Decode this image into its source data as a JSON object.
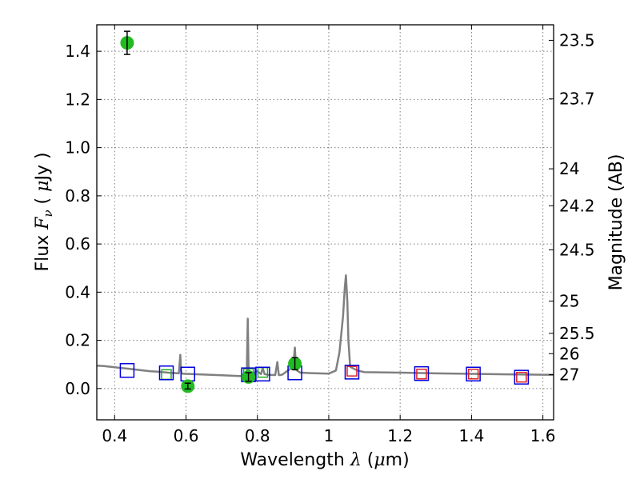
{
  "chart_data": {
    "type": "scatter",
    "title": "",
    "xlabel_prefix": "Wavelength  ",
    "xlabel_symbol": "λ",
    "xlabel_unit_open": " (",
    "xlabel_unit_mu": "μ",
    "xlabel_unit_close": "m)",
    "ylabel_prefix": "Flux  ",
    "ylabel_symbol": "F",
    "ylabel_subscript": "ν",
    "ylabel_unit_open": "  ( ",
    "ylabel_unit_mu": "μ",
    "ylabel_unit_close": "Jy )",
    "y2label": "Magnitude (AB)",
    "xlim": [
      0.35,
      1.63
    ],
    "ylim": [
      -0.13,
      1.51
    ],
    "grid": true,
    "x_ticks": [
      0.4,
      0.6,
      0.8,
      1.0,
      1.2,
      1.4,
      1.6
    ],
    "x_tick_labels": [
      "0.4",
      "0.6",
      "0.8",
      "1",
      "1.2",
      "1.4",
      "1.6"
    ],
    "y_ticks": [
      0.0,
      0.2,
      0.4,
      0.6,
      0.8,
      1.0,
      1.2,
      1.4
    ],
    "y_tick_labels": [
      "0.0",
      "0.2",
      "0.4",
      "0.6",
      "0.8",
      "1.0",
      "1.2",
      "1.4"
    ],
    "mag_ticks": [
      23.5,
      23.7,
      24,
      24.2,
      24.5,
      25,
      25.5,
      26,
      27
    ],
    "mag_tick_labels": [
      "23.5",
      "23.7",
      "24",
      "24.2",
      "24.5",
      "25",
      "25.5",
      "26",
      "27"
    ],
    "colors": {
      "model": "#808080",
      "observed": "#22bb22",
      "blue_box": "#0000dd",
      "green_box": "#22aa22",
      "red_box": "#dd2222",
      "grid": "#808080"
    },
    "series": [
      {
        "kind": "model-spectrum",
        "x": [
          0.35,
          0.37,
          0.4,
          0.42,
          0.44,
          0.46,
          0.48,
          0.5,
          0.52,
          0.55,
          0.58,
          0.584,
          0.586,
          0.588,
          0.6,
          0.65,
          0.7,
          0.75,
          0.77,
          0.773,
          0.775,
          0.777,
          0.78,
          0.79,
          0.8,
          0.81,
          0.815,
          0.82,
          0.83,
          0.85,
          0.856,
          0.86,
          0.864,
          0.87,
          0.9,
          0.905,
          0.908,
          0.911,
          0.92,
          0.95,
          1.0,
          1.02,
          1.03,
          1.04,
          1.045,
          1.048,
          1.052,
          1.055,
          1.06,
          1.08,
          1.1,
          1.2,
          1.3,
          1.4,
          1.5,
          1.63
        ],
        "y": [
          0.095,
          0.093,
          0.088,
          0.085,
          0.082,
          0.078,
          0.075,
          0.072,
          0.07,
          0.066,
          0.063,
          0.14,
          0.075,
          0.062,
          0.061,
          0.058,
          0.055,
          0.052,
          0.05,
          0.29,
          0.1,
          0.05,
          0.05,
          0.065,
          0.072,
          0.06,
          0.085,
          0.06,
          0.057,
          0.056,
          0.11,
          0.056,
          0.056,
          0.058,
          0.09,
          0.17,
          0.09,
          0.075,
          0.066,
          0.064,
          0.062,
          0.075,
          0.15,
          0.3,
          0.42,
          0.47,
          0.36,
          0.2,
          0.09,
          0.075,
          0.068,
          0.066,
          0.063,
          0.061,
          0.059,
          0.057
        ]
      },
      {
        "kind": "observed-points",
        "x": [
          0.435,
          0.605,
          0.775,
          0.905
        ],
        "y": [
          1.435,
          0.01,
          0.048,
          0.103
        ],
        "yerr": [
          0.048,
          0.012,
          0.018,
          0.025
        ]
      },
      {
        "kind": "model-photometry-blue",
        "x": [
          0.435,
          0.545,
          0.605,
          0.775,
          0.815,
          0.905,
          1.065,
          1.26,
          1.405,
          1.54
        ],
        "y": [
          0.075,
          0.065,
          0.06,
          0.057,
          0.06,
          0.065,
          0.068,
          0.062,
          0.06,
          0.047
        ]
      },
      {
        "kind": "model-photometry-green",
        "x": [
          0.545,
          0.775,
          0.815
        ],
        "y": [
          0.058,
          0.062,
          0.067
        ]
      },
      {
        "kind": "model-photometry-red",
        "x": [
          1.065,
          1.26,
          1.405,
          1.54
        ],
        "y": [
          0.072,
          0.06,
          0.06,
          0.047
        ]
      }
    ]
  }
}
